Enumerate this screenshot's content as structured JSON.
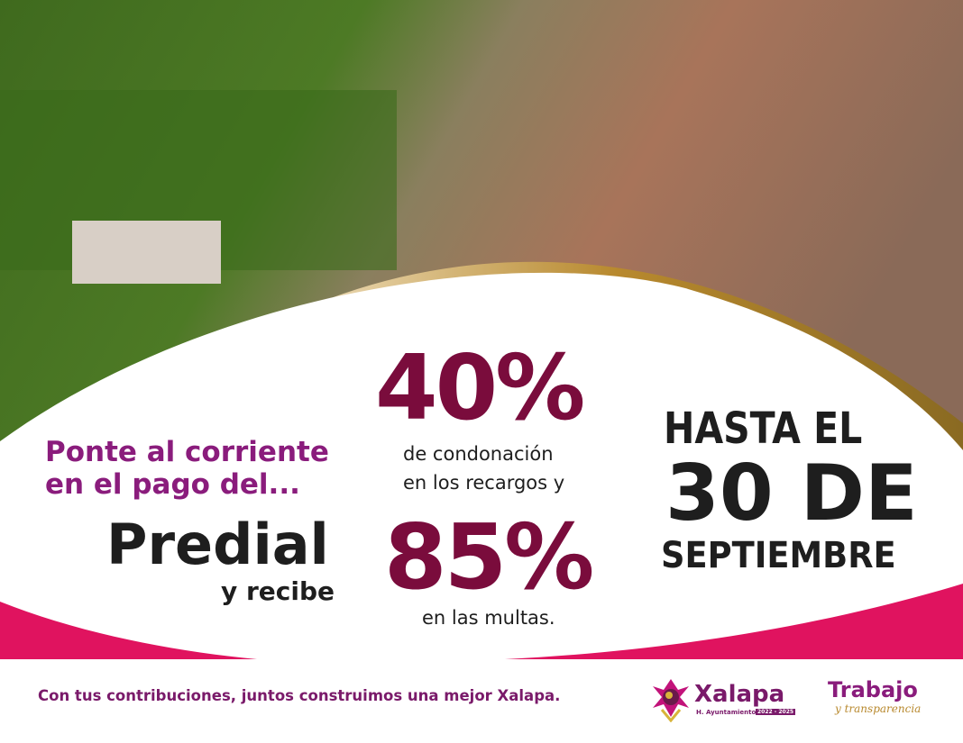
{
  "headline": {
    "line1": "Ponte al corriente",
    "line2": "en el pago del..."
  },
  "tax_name": "Predial",
  "receive_label": "y recibe",
  "offer1": {
    "percent": "40%",
    "line1": "de condonación",
    "line2": "en los recargos y"
  },
  "offer2": {
    "percent": "85%",
    "line1": "en las multas."
  },
  "deadline": {
    "line1": "HASTA EL",
    "line2": "30 DE",
    "line3": "SEPTIEMBRE"
  },
  "footer": {
    "slogan": "Con tus contribuciones, juntos construimos una mejor Xalapa."
  },
  "logos": {
    "xalapa": {
      "name": "Xalapa",
      "subtitle": "H. Ayuntamiento",
      "years": "2022 - 2025"
    },
    "trabajo": {
      "title": "Trabajo",
      "subtitle": "y transparencia"
    }
  },
  "colors": {
    "purple": "#8a1c7c",
    "maroon": "#7a0c3c",
    "pink": "#e0135f",
    "gold": "#b8892e"
  }
}
